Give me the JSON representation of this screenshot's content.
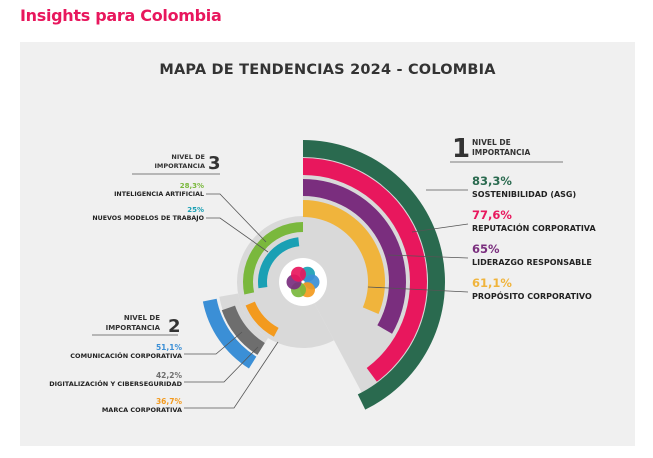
{
  "header": {
    "title": "Insights para Colombia"
  },
  "colors": {
    "brand": "#e8175d",
    "panel_bg": "#f0f0f0",
    "center_bg": "#d9d9d9",
    "text_dark": "#333333"
  },
  "chart_data": {
    "type": "radial-bar",
    "title": "MAPA DE TENDENCIAS 2024 - COLOMBIA",
    "unit": "%",
    "groups": [
      {
        "level_text": "NIVEL DE IMPORTANCIA",
        "level_number": "1",
        "items": [
          {
            "value": 83.3,
            "value_label": "83,3%",
            "name": "SOSTENIBILIDAD (ASG)",
            "color": "#2a6a4f"
          },
          {
            "value": 77.6,
            "value_label": "77,6%",
            "name": "REPUTACIÓN CORPORATIVA",
            "color": "#e8175d"
          },
          {
            "value": 65,
            "value_label": "65%",
            "name": "LIDERAZGO RESPONSABLE",
            "color": "#7a2e7e"
          },
          {
            "value": 61.1,
            "value_label": "61,1%",
            "name": "PROPÓSITO CORPORATIVO",
            "color": "#f0b43c"
          }
        ]
      },
      {
        "level_text": "NIVEL DE IMPORTANCIA",
        "level_number": "2",
        "items": [
          {
            "value": 51.1,
            "value_label": "51,1%",
            "name": "COMUNICACIÓN CORPORATIVA",
            "color": "#3b8fd6"
          },
          {
            "value": 42.2,
            "value_label": "42,2%",
            "name": "DIGITALIZACIÓN Y CIBERSEGURIDAD",
            "color": "#6e6e6e"
          },
          {
            "value": 36.7,
            "value_label": "36,7%",
            "name": "MARCA CORPORATIVA",
            "color": "#f39a1e"
          }
        ]
      },
      {
        "level_text": "NIVEL DE IMPORTANCIA",
        "level_number": "3",
        "items": [
          {
            "value": 28.3,
            "value_label": "28,3%",
            "name": "INTELIGENCIA ARTIFICIAL",
            "color": "#7ab83d"
          },
          {
            "value": 25,
            "value_label": "25%",
            "name": "NUEVOS MODELOS DE TRABAJO",
            "color": "#1aa0b4"
          }
        ]
      }
    ]
  }
}
